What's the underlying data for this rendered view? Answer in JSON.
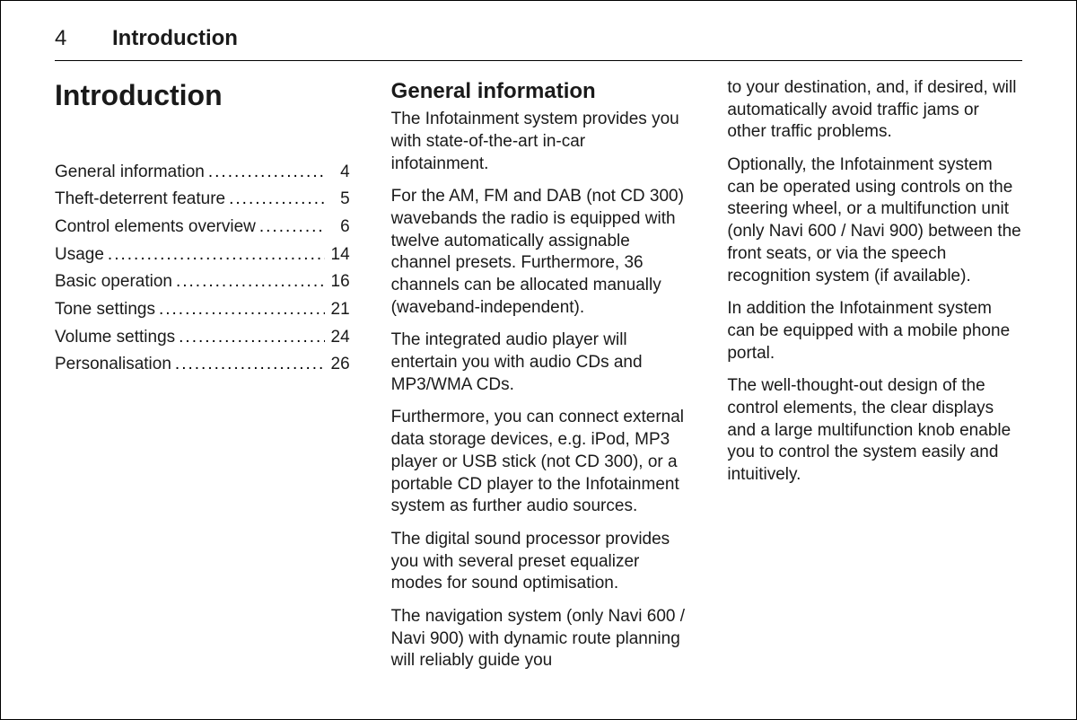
{
  "header": {
    "page_number": "4",
    "running_title": "Introduction"
  },
  "chapter_title": "Introduction",
  "toc": {
    "items": [
      {
        "label": "General information",
        "page": "4"
      },
      {
        "label": "Theft-deterrent feature",
        "page": "5"
      },
      {
        "label": "Control elements overview",
        "page": "6"
      },
      {
        "label": "Usage",
        "page": "14"
      },
      {
        "label": "Basic operation",
        "page": "16"
      },
      {
        "label": "Tone settings",
        "page": "21"
      },
      {
        "label": "Volume settings",
        "page": "24"
      },
      {
        "label": "Personalisation",
        "page": "26"
      }
    ]
  },
  "col2": {
    "title": "General information",
    "p1": "The Infotainment system provides you with state-of-the-art in-car infotainment.",
    "p2": "For the AM, FM and DAB (not CD 300) wavebands the radio is equipped with twelve automatically assignable channel presets. Furthermore, 36 channels can be allocated manually (waveband-independent).",
    "p3": "The integrated audio player will entertain you with audio CDs and MP3/WMA CDs.",
    "p4": "Furthermore, you can connect external data storage devices, e.g. iPod, MP3 player or USB stick (not CD 300), or a portable CD player to the Infotainment system as further audio sources.",
    "p5": "The digital sound processor provides you with several preset equalizer modes for sound optimisation.",
    "p6": "The navigation system (only Navi 600 / Navi 900) with dynamic route planning will reliably guide you"
  },
  "col3": {
    "p1": "to your destination, and, if desired, will automatically avoid traffic jams or other traffic problems.",
    "p2": "Optionally, the Infotainment system can be operated using controls on the steering wheel, or a multifunction unit (only Navi 600 / Navi 900) between the front seats, or via the speech recognition system (if available).",
    "p3": "In addition the Infotainment system can be equipped with a mobile phone portal.",
    "p4": "The well-thought-out design of the control elements, the clear displays and a large multifunction knob enable you to control the system easily and intuitively."
  },
  "style": {
    "font_family": "Arial, Helvetica, sans-serif",
    "body_fontsize_pt": 14,
    "title_fontsize_pt": 24,
    "section_title_fontsize_pt": 18,
    "text_color": "#1a1a1a",
    "background_color": "#ffffff",
    "rule_color": "#000000"
  }
}
